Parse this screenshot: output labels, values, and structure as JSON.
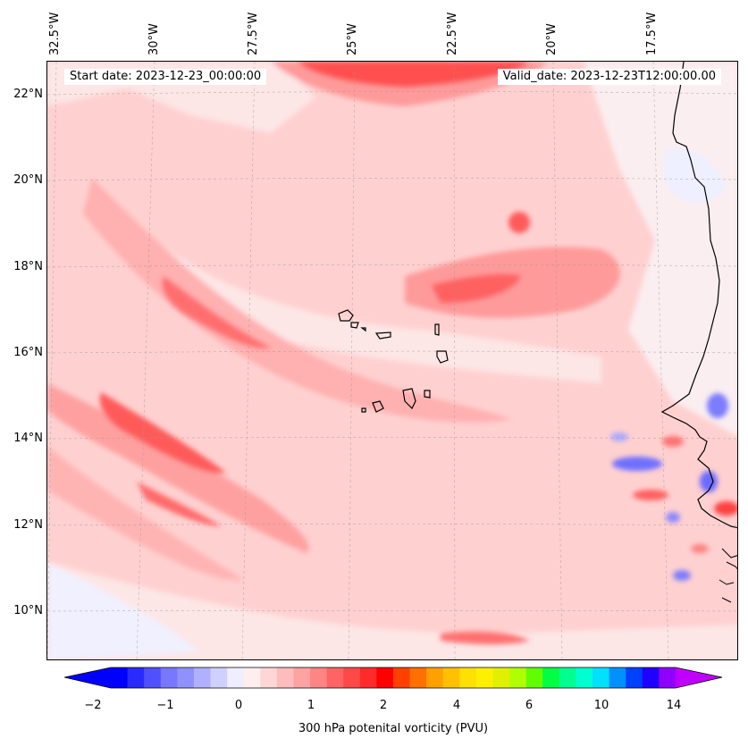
{
  "map": {
    "start_date": "Start date: 2023-12-23_00:00:00",
    "valid_date": "Valid_date: 2023-12-23T12:00:00.00",
    "longitude_labels": [
      "32.5°W",
      "30°W",
      "27.5°W",
      "25°W",
      "22.5°W",
      "20°W",
      "17.5°W"
    ],
    "latitude_labels": [
      "22°N",
      "20°N",
      "18°N",
      "16°N",
      "14°N",
      "12°N",
      "10°N"
    ],
    "extent": {
      "lon_min": -32.5,
      "lon_max": -15.4,
      "lat_min": 8.9,
      "lat_max": 22.8
    },
    "gridlines": true,
    "field": "300 hPa potential vorticity",
    "palette": {
      "strong_red": "#ff3b3b",
      "medium_red": "#ff8a8a",
      "light_red": "#ffc2c2",
      "pale_red": "#fde6e6",
      "pale_blue": "#eef0ff",
      "blue": "#7b7bff",
      "coastline": "#000000"
    }
  },
  "colorbar": {
    "label": "300 hPa potenital vorticity (PVU)",
    "tick_labels": [
      "−2",
      "−1",
      "0",
      "1",
      "2",
      "4",
      "6",
      "10",
      "14"
    ],
    "tick_values": [
      -2,
      -1,
      0,
      1,
      2,
      4,
      6,
      10,
      14
    ],
    "levels": [
      -2,
      -1.75,
      -1.5,
      -1.25,
      -1,
      -0.75,
      -0.5,
      -0.25,
      0,
      0.25,
      0.5,
      0.75,
      1,
      1.25,
      1.5,
      1.75,
      2,
      2.5,
      3,
      3.5,
      4,
      4.5,
      5,
      5.5,
      6,
      7,
      8,
      9,
      10,
      11,
      12,
      13,
      14
    ],
    "colors": [
      "#0000ff",
      "#2a2aff",
      "#5050ff",
      "#7878ff",
      "#9090ff",
      "#b0b0ff",
      "#d0d0ff",
      "#eeeeff",
      "#ffeeee",
      "#ffd6d6",
      "#ffbcbc",
      "#ffa2a2",
      "#ff8484",
      "#ff6464",
      "#ff4848",
      "#ff2a2a",
      "#ff0000",
      "#ff4000",
      "#ff7000",
      "#ffa000",
      "#ffc000",
      "#ffe000",
      "#fff000",
      "#e0f000",
      "#b0ff00",
      "#60ff00",
      "#00ff40",
      "#00ff90",
      "#00ffd0",
      "#00e0ff",
      "#0090ff",
      "#0040ff",
      "#2000ff",
      "#9000ff"
    ],
    "extend_low_color": "#0000ff",
    "extend_high_color": "#c000ff"
  }
}
